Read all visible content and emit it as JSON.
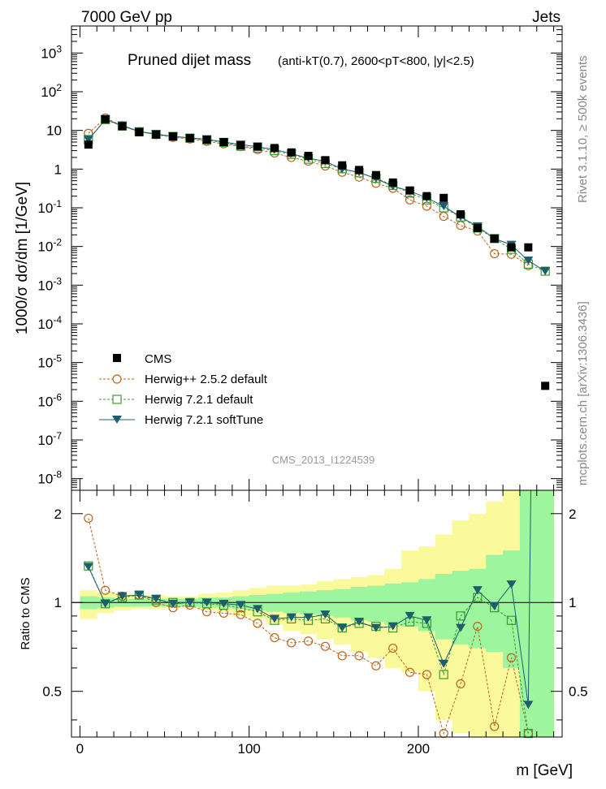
{
  "header": {
    "energy_label": "7000 GeV pp",
    "category_label": "Jets"
  },
  "side_labels": {
    "generator": "Rivet 3.1.10, ≥ 500k events",
    "source": "mcplots.cern.ch [arXiv:1306.3436]"
  },
  "chart_data": [
    {
      "type": "scatter",
      "panel": "main",
      "title": "Pruned dijet mass",
      "subtitle": "(anti-kT(0.7), 2600<pT<800, |y|<2.5)",
      "ylabel": "1000/σ dσ/dm [1/GeV]",
      "xlabel": "m [GeV]",
      "yscale": "log",
      "ylim": [
        5e-09,
        5000
      ],
      "xlim": [
        -5,
        285
      ],
      "analysis_label": "CMS_2013_I1224539",
      "ytick_labels": [
        "10^3",
        "10^2",
        "10",
        "1",
        "10^-1",
        "10^-2",
        "10^-3",
        "10^-4",
        "10^-5",
        "10^-6",
        "10^-7",
        "10^-8"
      ],
      "legend": [
        {
          "name": "CMS",
          "marker": "square",
          "color": "#000000"
        },
        {
          "name": "Herwig++ 2.5.2 default",
          "marker": "circle-open",
          "color": "#b8651f"
        },
        {
          "name": "Herwig 7.2.1 default",
          "marker": "square-open",
          "color": "#3a9a32"
        },
        {
          "name": "Herwig 7.2.1 softTune",
          "marker": "triangle-down",
          "color": "#1f5c6e"
        }
      ],
      "x": [
        5,
        15,
        25,
        35,
        45,
        55,
        65,
        75,
        85,
        95,
        105,
        115,
        125,
        135,
        145,
        155,
        165,
        175,
        185,
        195,
        205,
        215,
        225,
        235,
        245,
        255,
        265,
        275
      ],
      "series": [
        {
          "name": "CMS",
          "values": [
            4.3,
            19.5,
            12.8,
            9.0,
            7.8,
            7.0,
            6.3,
            5.8,
            5.0,
            4.1,
            3.8,
            3.5,
            2.7,
            2.2,
            1.7,
            1.25,
            0.95,
            0.7,
            0.45,
            0.28,
            0.2,
            0.18,
            0.068,
            0.03,
            0.016,
            0.0095,
            0.0095,
            2.5e-06
          ]
        },
        {
          "name": "Herwig++ 2.5.2 default",
          "values": [
            8.4,
            21.0,
            13.2,
            9.3,
            7.8,
            6.6,
            6.0,
            5.2,
            4.5,
            3.8,
            3.2,
            2.6,
            2.0,
            1.6,
            1.2,
            0.83,
            0.62,
            0.43,
            0.32,
            0.16,
            0.11,
            0.06,
            0.035,
            0.025,
            0.0065,
            0.0063,
            0.0032,
            null
          ]
        },
        {
          "name": "Herwig 7.2.1 default",
          "values": [
            5.8,
            19.0,
            13.0,
            9.2,
            7.9,
            7.0,
            6.3,
            5.6,
            4.9,
            3.9,
            3.5,
            3.0,
            2.4,
            1.8,
            1.4,
            1.02,
            0.8,
            0.58,
            0.38,
            0.24,
            0.16,
            0.1,
            0.058,
            0.03,
            0.016,
            0.0085,
            0.0035,
            0.0023
          ]
        },
        {
          "name": "Herwig 7.2.1 softTune",
          "values": [
            5.7,
            19.1,
            13.4,
            9.4,
            8.0,
            7.0,
            6.4,
            5.9,
            5.0,
            4.3,
            3.8,
            3.2,
            2.5,
            1.9,
            1.6,
            1.0,
            0.82,
            0.57,
            0.36,
            0.27,
            0.18,
            0.11,
            0.058,
            0.033,
            0.016,
            0.011,
            0.0043,
            0.0023
          ]
        }
      ]
    },
    {
      "type": "scatter",
      "panel": "ratio",
      "ylabel": "Ratio to CMS",
      "yscale": "log",
      "ylim": [
        0.35,
        2.4
      ],
      "xlim": [
        -5,
        285
      ],
      "ytick_labels": [
        "0.5",
        "1",
        "2"
      ],
      "xtick_labels": [
        "0",
        "100",
        "200"
      ],
      "reference_line": 1,
      "uncertainty_bands": {
        "inner_color": "#9df59d",
        "outer_color": "#fafa9c",
        "inner_low": [
          0.95,
          0.96,
          0.97,
          0.97,
          0.97,
          0.97,
          0.97,
          0.96,
          0.96,
          0.95,
          0.94,
          0.93,
          0.92,
          0.91,
          0.9,
          0.89,
          0.87,
          0.86,
          0.84,
          0.83,
          0.8,
          0.75,
          0.72,
          0.7,
          0.68,
          0.6,
          0.35,
          0.35
        ],
        "inner_high": [
          1.05,
          1.04,
          1.03,
          1.03,
          1.03,
          1.03,
          1.03,
          1.04,
          1.04,
          1.05,
          1.06,
          1.07,
          1.08,
          1.09,
          1.1,
          1.11,
          1.13,
          1.14,
          1.16,
          1.17,
          1.2,
          1.25,
          1.28,
          1.3,
          1.45,
          1.5,
          2.4,
          2.4
        ],
        "outer_low": [
          0.88,
          0.92,
          0.94,
          0.95,
          0.95,
          0.96,
          0.96,
          0.94,
          0.93,
          0.9,
          0.88,
          0.84,
          0.8,
          0.78,
          0.75,
          0.72,
          0.68,
          0.65,
          0.6,
          0.58,
          0.5,
          0.4,
          0.36,
          0.35,
          0.35,
          0.35,
          0.35,
          0.35
        ],
        "outer_high": [
          1.1,
          1.08,
          1.07,
          1.06,
          1.06,
          1.05,
          1.05,
          1.07,
          1.08,
          1.1,
          1.12,
          1.14,
          1.14,
          1.15,
          1.18,
          1.2,
          1.22,
          1.24,
          1.3,
          1.5,
          1.55,
          1.7,
          1.9,
          2.0,
          2.2,
          2.4,
          2.4,
          2.4
        ]
      },
      "x": [
        5,
        15,
        25,
        35,
        45,
        55,
        65,
        75,
        85,
        95,
        105,
        115,
        125,
        135,
        145,
        155,
        165,
        175,
        185,
        195,
        205,
        215,
        225,
        235,
        245,
        255,
        265
      ],
      "series": [
        {
          "name": "Herwig++ 2.5.2 default",
          "values": [
            1.93,
            1.1,
            1.05,
            1.06,
            1.0,
            0.96,
            0.98,
            0.93,
            0.92,
            0.91,
            0.85,
            0.76,
            0.73,
            0.74,
            0.71,
            0.66,
            0.66,
            0.61,
            0.7,
            0.58,
            0.57,
            0.36,
            0.53,
            0.83,
            0.38,
            0.65,
            0.36
          ]
        },
        {
          "name": "Herwig 7.2.1 default",
          "values": [
            1.33,
            0.99,
            1.04,
            1.06,
            1.02,
            1.0,
            1.0,
            0.99,
            0.98,
            0.96,
            0.93,
            0.87,
            0.88,
            0.87,
            0.88,
            0.82,
            0.85,
            0.83,
            0.82,
            0.86,
            0.85,
            0.57,
            0.9,
            1.04,
            0.96,
            0.87,
            0.36
          ]
        },
        {
          "name": "Herwig 7.2.1 softTune",
          "values": [
            1.32,
            0.99,
            1.05,
            1.06,
            1.03,
            0.99,
            1.0,
            1.0,
            0.99,
            0.98,
            0.95,
            0.88,
            0.89,
            0.89,
            0.91,
            0.82,
            0.86,
            0.82,
            0.83,
            0.9,
            0.87,
            0.62,
            0.82,
            1.1,
            0.97,
            1.15,
            0.45
          ]
        }
      ]
    }
  ]
}
